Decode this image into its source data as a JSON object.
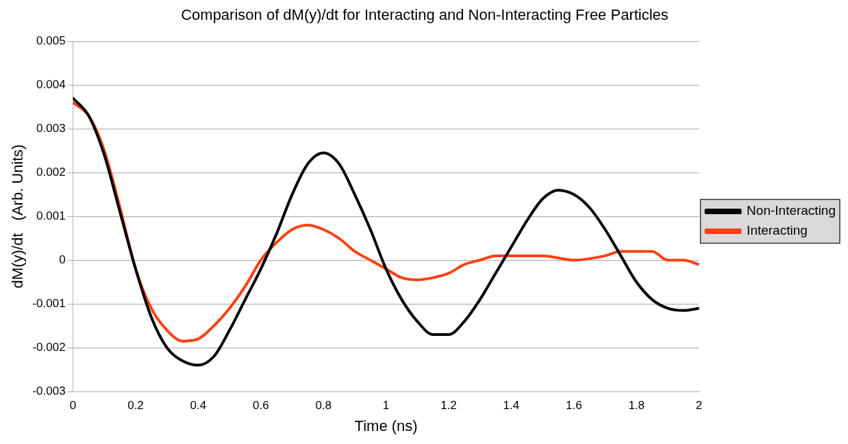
{
  "chart_data": {
    "type": "line",
    "title": "Comparison of dM(y)/dt for Interacting and Non-Interacting Free Particles",
    "xlabel": "Time (ns)",
    "ylabel": "dM(y)/dt   (Arb. Units)",
    "xlim": [
      0,
      2
    ],
    "xticks": [
      0,
      0.2,
      0.4,
      0.6,
      0.8,
      1,
      1.2,
      1.4,
      1.6,
      1.8,
      2
    ],
    "ylim": [
      -0.003,
      0.005
    ],
    "yticks": [
      -0.003,
      -0.002,
      -0.001,
      0,
      0.001,
      0.002,
      0.003,
      0.004,
      0.005
    ],
    "grid": "y",
    "legend": "right",
    "marker": "none",
    "line_style": "solid",
    "series": [
      {
        "name": "Non-Interacting",
        "color": "#000000",
        "x": [
          0,
          0.05,
          0.1,
          0.15,
          0.2,
          0.25,
          0.3,
          0.35,
          0.4,
          0.45,
          0.5,
          0.55,
          0.6,
          0.65,
          0.7,
          0.75,
          0.8,
          0.85,
          0.9,
          0.95,
          1,
          1.05,
          1.1,
          1.15,
          1.2,
          1.25,
          1.3,
          1.35,
          1.4,
          1.45,
          1.5,
          1.55,
          1.6,
          1.65,
          1.7,
          1.75,
          1.8,
          1.85,
          1.9,
          1.95,
          2
        ],
        "values": [
          0.0037,
          0.0033,
          0.0024,
          0.0011,
          -0.0002,
          -0.0013,
          -0.002,
          -0.0023,
          -0.0024,
          -0.0022,
          -0.0016,
          -0.0009,
          -0.0002,
          0.0006,
          0.0015,
          0.0022,
          0.00245,
          0.0022,
          0.0015,
          0.0007,
          -0.0002,
          -0.0009,
          -0.0014,
          -0.0017,
          -0.0017,
          -0.0014,
          -0.0009,
          -0.0003,
          0.0003,
          0.0009,
          0.0014,
          0.0016,
          0.0015,
          0.0012,
          0.0007,
          0.0001,
          -0.0005,
          -0.0009,
          -0.0011,
          -0.00115,
          -0.0011
        ]
      },
      {
        "name": "Interacting",
        "color": "#ff4013",
        "x": [
          0,
          0.05,
          0.1,
          0.15,
          0.2,
          0.25,
          0.3,
          0.35,
          0.4,
          0.45,
          0.5,
          0.55,
          0.6,
          0.65,
          0.7,
          0.75,
          0.8,
          0.85,
          0.9,
          0.95,
          1,
          1.05,
          1.1,
          1.15,
          1.2,
          1.25,
          1.3,
          1.35,
          1.4,
          1.5,
          1.6,
          1.7,
          1.75,
          1.8,
          1.85,
          1.9,
          1.95,
          2
        ],
        "values": [
          0.0036,
          0.0033,
          0.0025,
          0.0012,
          -0.0002,
          -0.0011,
          -0.0016,
          -0.00185,
          -0.0018,
          -0.0015,
          -0.0011,
          -0.0006,
          0,
          0.0004,
          0.0007,
          0.0008,
          0.0007,
          0.0005,
          0.0002,
          0,
          -0.0002,
          -0.0004,
          -0.00045,
          -0.0004,
          -0.0003,
          -0.0001,
          0,
          0.0001,
          0.0001,
          0.0001,
          0,
          0.0001,
          0.0002,
          0.0002,
          0.0002,
          0,
          0,
          -0.0001
        ]
      }
    ]
  }
}
